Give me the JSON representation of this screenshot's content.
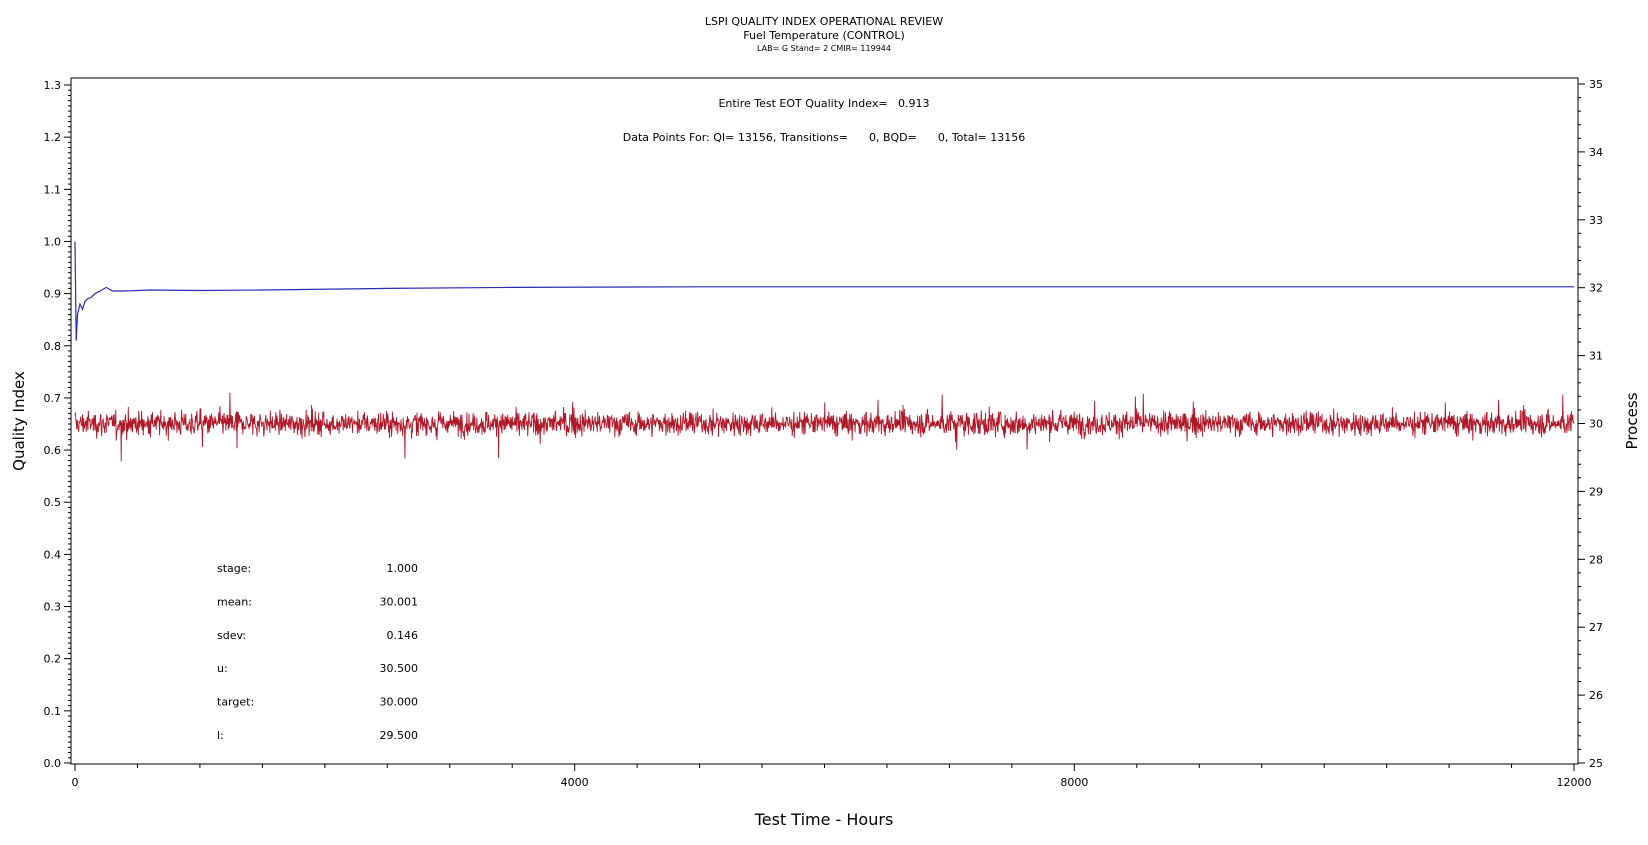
{
  "chart_data": {
    "type": "line",
    "title": "LSPI QUALITY INDEX OPERATIONAL REVIEW",
    "subtitle": "Fuel Temperature (CONTROL)",
    "subtitle2": "LAB= G Stand= 2 CMIR= 119944",
    "xlabel": "Test Time - Hours",
    "ylabel_left": "Quality Index",
    "ylabel_right": "Process",
    "xlim": [
      0,
      12000
    ],
    "ylim_left": [
      0.0,
      1.3
    ],
    "ylim_right": [
      25,
      35
    ],
    "x_ticks": [
      "0",
      "4000",
      "8000",
      "12000"
    ],
    "y_left_ticks": [
      "0.0",
      "0.1",
      "0.2",
      "0.3",
      "0.4",
      "0.5",
      "0.6",
      "0.7",
      "0.8",
      "0.9",
      "1.0",
      "1.1",
      "1.2",
      "1.3"
    ],
    "y_right_ticks": [
      "25",
      "26",
      "27",
      "28",
      "29",
      "30",
      "31",
      "32",
      "33",
      "34",
      "35"
    ],
    "annotation_qi": "Entire Test EOT Quality Index=   0.913",
    "annotation_points": "Data Points For: QI= 13156, Transitions=      0, BQD=      0, Total= 13156",
    "stats": [
      {
        "label": "stage:",
        "value": "1.000"
      },
      {
        "label": "mean:",
        "value": "30.001"
      },
      {
        "label": "sdev:",
        "value": "0.146"
      },
      {
        "label": "u:",
        "value": "30.500"
      },
      {
        "label": "target:",
        "value": "30.000"
      },
      {
        "label": "l:",
        "value": "29.500"
      }
    ],
    "series": [
      {
        "axis": "left",
        "color": "#2b2bb8",
        "points": [
          [
            0,
            1.0
          ],
          [
            10,
            0.81
          ],
          [
            20,
            0.86
          ],
          [
            40,
            0.88
          ],
          [
            60,
            0.87
          ],
          [
            80,
            0.885
          ],
          [
            100,
            0.89
          ],
          [
            130,
            0.893
          ],
          [
            160,
            0.9
          ],
          [
            200,
            0.905
          ],
          [
            250,
            0.912
          ],
          [
            300,
            0.905
          ],
          [
            400,
            0.905
          ],
          [
            600,
            0.907
          ],
          [
            1000,
            0.906
          ],
          [
            1500,
            0.907
          ],
          [
            2500,
            0.91
          ],
          [
            3500,
            0.912
          ],
          [
            5000,
            0.913
          ],
          [
            7000,
            0.913
          ],
          [
            12000,
            0.913
          ]
        ]
      },
      {
        "axis": "right",
        "color": "#b0182a",
        "kind": "noise",
        "mean": 30.001,
        "sdev": 0.146,
        "count": 13156
      }
    ],
    "colors": {
      "axis": "#000000",
      "qi_line": "#2b2bb8",
      "process_line": "#b0182a"
    }
  }
}
